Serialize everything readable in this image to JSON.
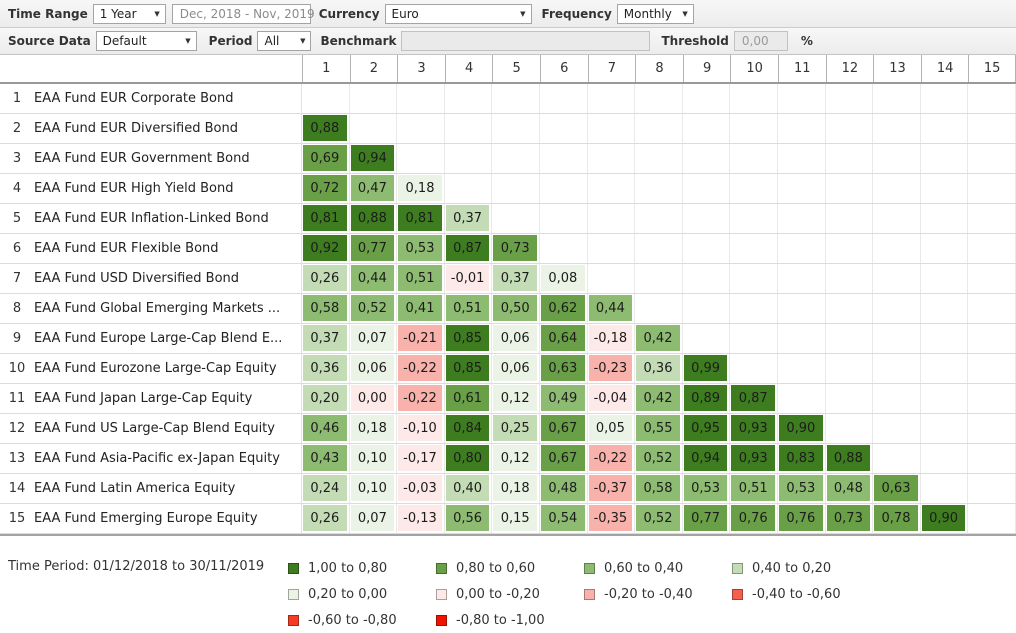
{
  "toolbar": {
    "row1": {
      "time_range_label": "Time Range",
      "time_range_value": "1 Year",
      "date_range": "Dec, 2018 - Nov, 2019",
      "currency_label": "Currency",
      "currency_value": "Euro",
      "frequency_label": "Frequency",
      "frequency_value": "Monthly"
    },
    "row2": {
      "source_data_label": "Source Data",
      "source_data_value": "Default",
      "period_label": "Period",
      "period_value": "All",
      "benchmark_label": "Benchmark",
      "benchmark_value": "",
      "threshold_label": "Threshold",
      "threshold_value": "0,00",
      "threshold_unit": "%"
    }
  },
  "table": {
    "column_headers": [
      "1",
      "2",
      "3",
      "4",
      "5",
      "6",
      "7",
      "8",
      "9",
      "10",
      "11",
      "12",
      "13",
      "14",
      "15"
    ],
    "rows": [
      {
        "num": "1",
        "name": "EAA Fund EUR Corporate Bond",
        "values": []
      },
      {
        "num": "2",
        "name": "EAA Fund EUR Diversified Bond",
        "values": [
          "0,88"
        ]
      },
      {
        "num": "3",
        "name": "EAA Fund EUR Government Bond",
        "values": [
          "0,69",
          "0,94"
        ]
      },
      {
        "num": "4",
        "name": "EAA Fund EUR High Yield Bond",
        "values": [
          "0,72",
          "0,47",
          "0,18"
        ]
      },
      {
        "num": "5",
        "name": "EAA Fund EUR Inflation-Linked Bond",
        "values": [
          "0,81",
          "0,88",
          "0,81",
          "0,37"
        ]
      },
      {
        "num": "6",
        "name": "EAA Fund EUR Flexible Bond",
        "values": [
          "0,92",
          "0,77",
          "0,53",
          "0,87",
          "0,73"
        ]
      },
      {
        "num": "7",
        "name": "EAA Fund USD Diversified Bond",
        "values": [
          "0,26",
          "0,44",
          "0,51",
          "-0,01",
          "0,37",
          "0,08"
        ]
      },
      {
        "num": "8",
        "name": "EAA Fund Global Emerging Markets ...",
        "values": [
          "0,58",
          "0,52",
          "0,41",
          "0,51",
          "0,50",
          "0,62",
          "0,44"
        ]
      },
      {
        "num": "9",
        "name": "EAA Fund Europe Large-Cap Blend E...",
        "values": [
          "0,37",
          "0,07",
          "-0,21",
          "0,85",
          "0,06",
          "0,64",
          "-0,18",
          "0,42"
        ]
      },
      {
        "num": "10",
        "name": "EAA Fund Eurozone Large-Cap Equity",
        "values": [
          "0,36",
          "0,06",
          "-0,22",
          "0,85",
          "0,06",
          "0,63",
          "-0,23",
          "0,36",
          "0,99"
        ]
      },
      {
        "num": "11",
        "name": "EAA Fund Japan Large-Cap Equity",
        "values": [
          "0,20",
          "0,00",
          "-0,22",
          "0,61",
          "0,12",
          "0,49",
          "-0,04",
          "0,42",
          "0,89",
          "0,87"
        ]
      },
      {
        "num": "12",
        "name": "EAA Fund US Large-Cap Blend Equity",
        "values": [
          "0,46",
          "0,18",
          "-0,10",
          "0,84",
          "0,25",
          "0,67",
          "0,05",
          "0,55",
          "0,95",
          "0,93",
          "0,90"
        ]
      },
      {
        "num": "13",
        "name": "EAA Fund Asia-Pacific ex-Japan Equity",
        "values": [
          "0,43",
          "0,10",
          "-0,17",
          "0,80",
          "0,12",
          "0,67",
          "-0,22",
          "0,52",
          "0,94",
          "0,93",
          "0,83",
          "0,88"
        ]
      },
      {
        "num": "14",
        "name": "EAA Fund Latin America Equity",
        "values": [
          "0,24",
          "0,10",
          "-0,03",
          "0,40",
          "0,18",
          "0,48",
          "-0,37",
          "0,58",
          "0,53",
          "0,51",
          "0,53",
          "0,48",
          "0,63"
        ]
      },
      {
        "num": "15",
        "name": "EAA Fund Emerging Europe Equity",
        "values": [
          "0,26",
          "0,07",
          "-0,13",
          "0,56",
          "0,15",
          "0,54",
          "-0,35",
          "0,52",
          "0,77",
          "0,76",
          "0,76",
          "0,73",
          "0,78",
          "0,90"
        ]
      }
    ],
    "bucket_overrides": [
      {
        "row": "11",
        "col": 2,
        "bucket": "n20"
      },
      {
        "row": "14",
        "col": 4,
        "bucket": "p20"
      }
    ]
  },
  "colors": {
    "p80": "#3e7d1f",
    "p60": "#69a047",
    "p40": "#8ebb72",
    "p20": "#c3dcb5",
    "p00": "#eaf3e5",
    "n20": "#fce9e8",
    "n40": "#f9b2ab",
    "n60": "#f4604c",
    "n80": "#f33b26",
    "n100": "#ee1400"
  },
  "footer": {
    "time_period": "Time Period: 01/12/2018 to 30/11/2019",
    "legend": [
      {
        "label": "1,00 to 0,80",
        "bucket": "p80"
      },
      {
        "label": "0,80 to 0,60",
        "bucket": "p60"
      },
      {
        "label": "0,60 to 0,40",
        "bucket": "p40"
      },
      {
        "label": "0,40 to 0,20",
        "bucket": "p20"
      },
      {
        "label": "0,20 to 0,00",
        "bucket": "p00"
      },
      {
        "label": "0,00 to -0,20",
        "bucket": "n20"
      },
      {
        "label": "-0,20 to -0,40",
        "bucket": "n40"
      },
      {
        "label": "-0,40 to -0,60",
        "bucket": "n60"
      },
      {
        "label": "-0,60 to -0,80",
        "bucket": "n80"
      },
      {
        "label": "-0,80 to -1,00",
        "bucket": "n100"
      }
    ]
  },
  "chart_data": {
    "type": "heatmap",
    "rows": [
      "EAA Fund EUR Corporate Bond",
      "EAA Fund EUR Diversified Bond",
      "EAA Fund EUR Government Bond",
      "EAA Fund EUR High Yield Bond",
      "EAA Fund EUR Inflation-Linked Bond",
      "EAA Fund EUR Flexible Bond",
      "EAA Fund USD Diversified Bond",
      "EAA Fund Global Emerging Markets ...",
      "EAA Fund Europe Large-Cap Blend E...",
      "EAA Fund Eurozone Large-Cap Equity",
      "EAA Fund Japan Large-Cap Equity",
      "EAA Fund US Large-Cap Blend Equity",
      "EAA Fund Asia-Pacific ex-Japan Equity",
      "EAA Fund Latin America Equity",
      "EAA Fund Emerging Europe Equity"
    ],
    "columns": [
      1,
      2,
      3,
      4,
      5,
      6,
      7,
      8,
      9,
      10,
      11,
      12,
      13,
      14,
      15
    ],
    "values": [
      [],
      [
        0.88
      ],
      [
        0.69,
        0.94
      ],
      [
        0.72,
        0.47,
        0.18
      ],
      [
        0.81,
        0.88,
        0.81,
        0.37
      ],
      [
        0.92,
        0.77,
        0.53,
        0.87,
        0.73
      ],
      [
        0.26,
        0.44,
        0.51,
        -0.01,
        0.37,
        0.08
      ],
      [
        0.58,
        0.52,
        0.41,
        0.51,
        0.5,
        0.62,
        0.44
      ],
      [
        0.37,
        0.07,
        -0.21,
        0.85,
        0.06,
        0.64,
        -0.18,
        0.42
      ],
      [
        0.36,
        0.06,
        -0.22,
        0.85,
        0.06,
        0.63,
        -0.23,
        0.36,
        0.99
      ],
      [
        0.2,
        0.0,
        -0.22,
        0.61,
        0.12,
        0.49,
        -0.04,
        0.42,
        0.89,
        0.87
      ],
      [
        0.46,
        0.18,
        -0.1,
        0.84,
        0.25,
        0.67,
        0.05,
        0.55,
        0.95,
        0.93,
        0.9
      ],
      [
        0.43,
        0.1,
        -0.17,
        0.8,
        0.12,
        0.67,
        -0.22,
        0.52,
        0.94,
        0.93,
        0.83,
        0.88
      ],
      [
        0.24,
        0.1,
        -0.03,
        0.4,
        0.18,
        0.48,
        -0.37,
        0.58,
        0.53,
        0.51,
        0.53,
        0.48,
        0.63
      ],
      [
        0.26,
        0.07,
        -0.13,
        0.56,
        0.15,
        0.54,
        -0.35,
        0.52,
        0.77,
        0.76,
        0.76,
        0.73,
        0.78,
        0.9
      ]
    ],
    "legend_buckets": [
      "1,00 to 0,80",
      "0,80 to 0,60",
      "0,60 to 0,40",
      "0,40 to 0,20",
      "0,20 to 0,00",
      "0,00 to -0,20",
      "-0,20 to -0,40",
      "-0,40 to -0,60",
      "-0,60 to -0,80",
      "-0,80 to -1,00"
    ]
  }
}
